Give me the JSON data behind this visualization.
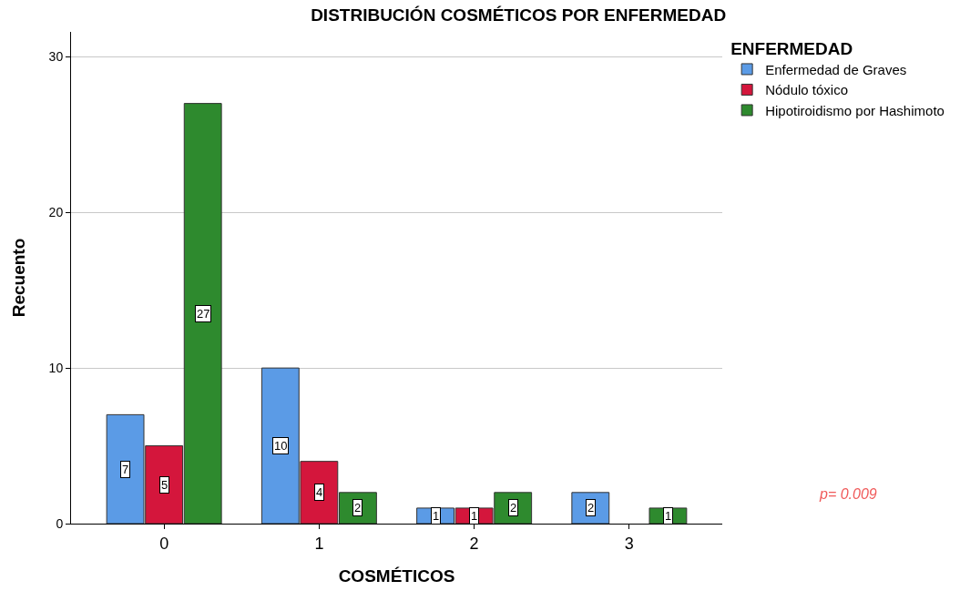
{
  "chart_data": {
    "type": "bar",
    "title": "DISTRIBUCIÓN COSMÉTICOS POR ENFERMEDAD",
    "xlabel": "COSMÉTICOS",
    "ylabel": "Recuento",
    "legend_title": "ENFERMEDAD",
    "categories": [
      "0",
      "1",
      "2",
      "3"
    ],
    "series": [
      {
        "name": "Enfermedad de Graves",
        "color": "#5b9be6",
        "values": [
          7,
          10,
          1,
          2
        ]
      },
      {
        "name": "Nódulo tóxico",
        "color": "#d4163c",
        "values": [
          5,
          4,
          1,
          null
        ]
      },
      {
        "name": "Hipotiroidismo por Hashimoto",
        "color": "#2e8a2e",
        "values": [
          27,
          2,
          2,
          1
        ]
      }
    ],
    "ylim": [
      0,
      31.6
    ],
    "yticks": [
      0,
      10,
      20,
      30
    ],
    "grid": "y",
    "legend": "top right",
    "data_labels": true,
    "annotations": [
      "p= 0.009"
    ]
  }
}
